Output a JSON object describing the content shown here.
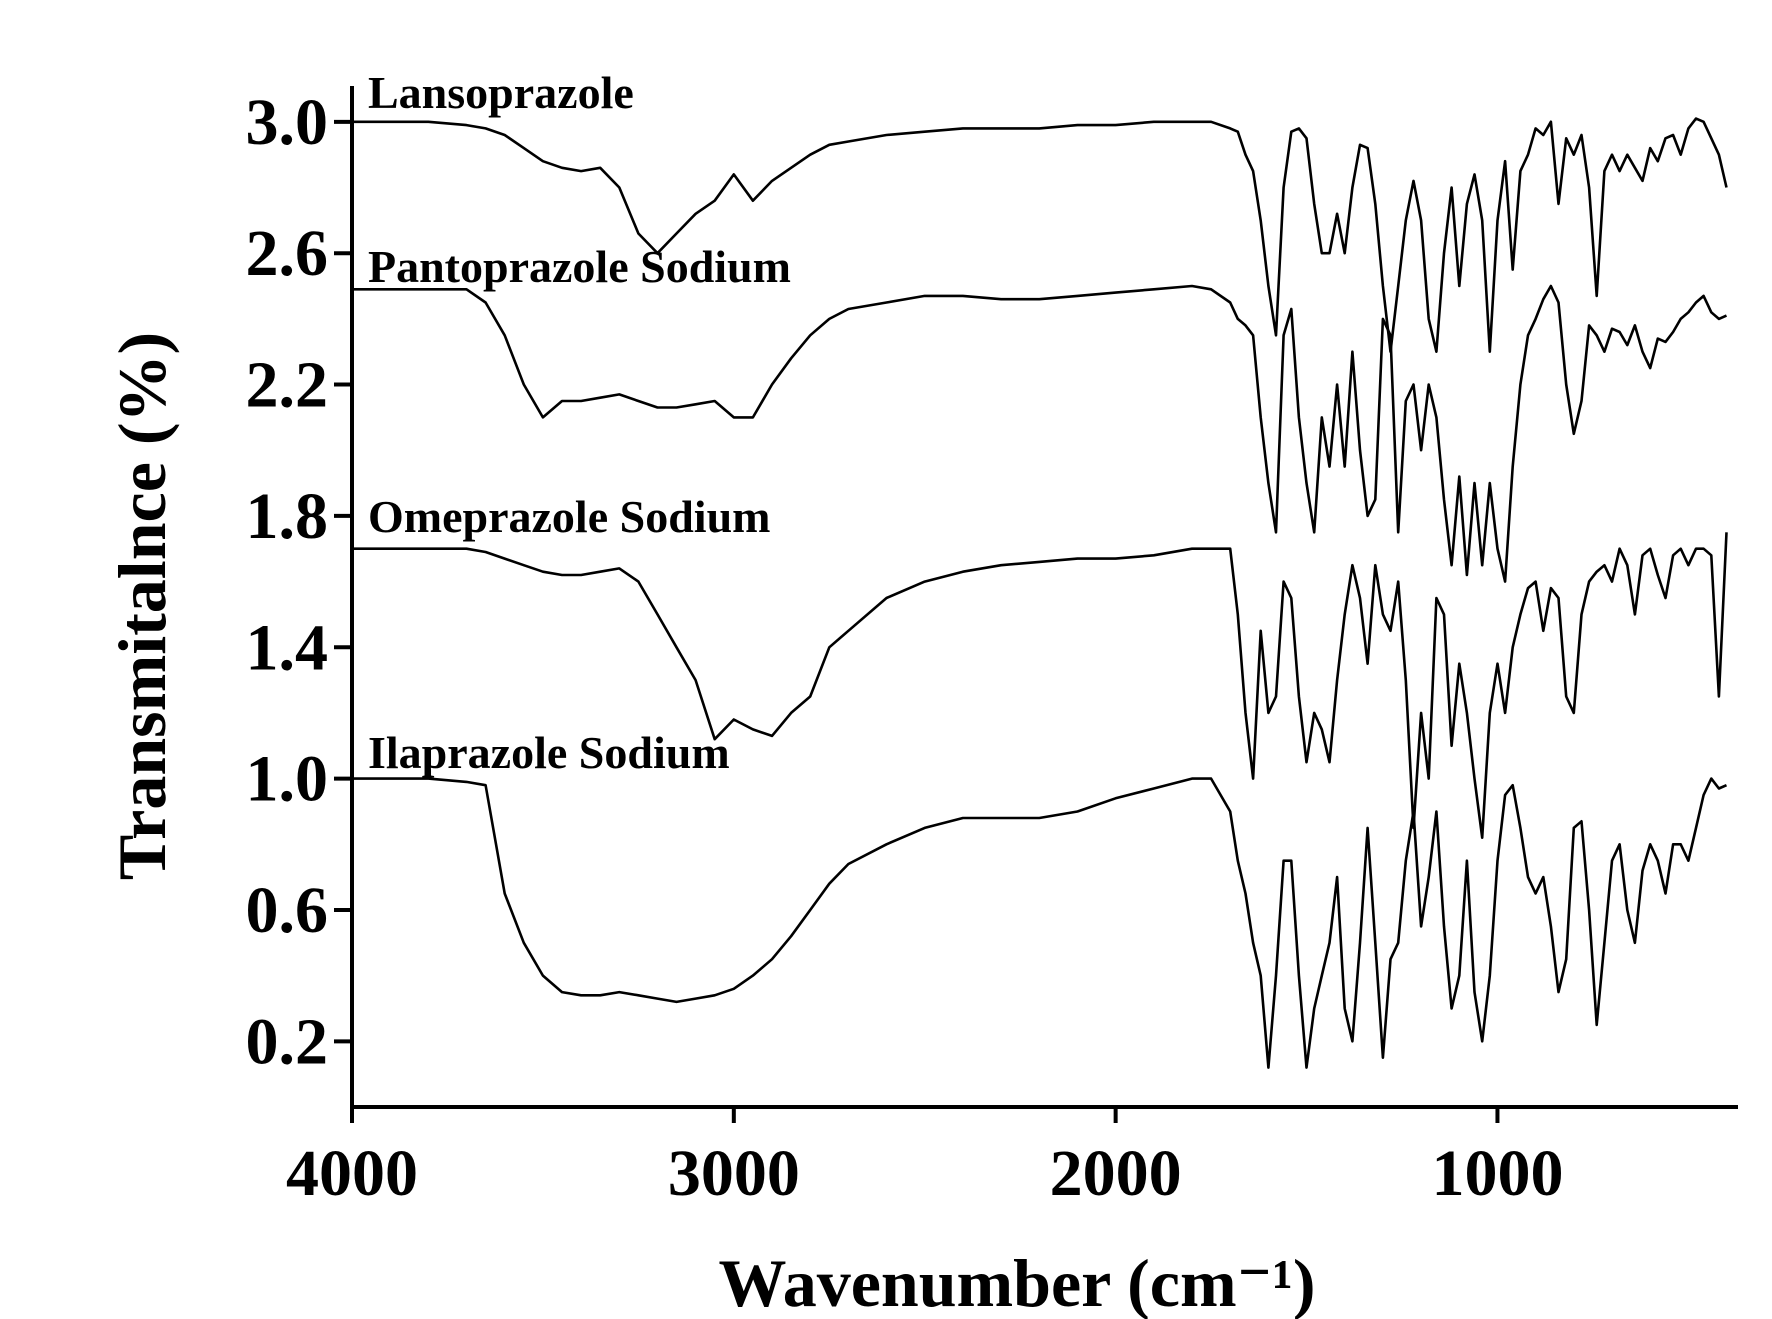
{
  "chart_data": {
    "type": "line",
    "xlabel": "Wavenumber (cm⁻¹)",
    "ylabel": "Transmitalnce (%)",
    "xlim": [
      4000,
      370
    ],
    "xticks": [
      4000,
      3000,
      2000,
      1000
    ],
    "ylim": [
      0,
      3.1
    ],
    "yticks": [
      0.2,
      0.6,
      {
        "value": 1.0,
        "label": "1.0"
      },
      1.4,
      1.8,
      2.2,
      2.6,
      {
        "value": 3.0,
        "label": "3.0"
      }
    ],
    "grid": false,
    "x": [
      4000,
      3900,
      3800,
      3700,
      3650,
      3600,
      3550,
      3500,
      3450,
      3400,
      3350,
      3300,
      3250,
      3200,
      3150,
      3100,
      3050,
      3000,
      2950,
      2900,
      2850,
      2800,
      2750,
      2700,
      2600,
      2500,
      2400,
      2300,
      2200,
      2100,
      2000,
      1900,
      1800,
      1750,
      1700,
      1680,
      1660,
      1640,
      1620,
      1600,
      1580,
      1560,
      1540,
      1520,
      1500,
      1480,
      1460,
      1440,
      1420,
      1400,
      1380,
      1360,
      1340,
      1320,
      1300,
      1280,
      1260,
      1240,
      1220,
      1200,
      1180,
      1160,
      1140,
      1120,
      1100,
      1080,
      1060,
      1040,
      1020,
      1000,
      980,
      960,
      940,
      920,
      900,
      880,
      860,
      840,
      820,
      800,
      780,
      760,
      740,
      720,
      700,
      680,
      660,
      640,
      620,
      600,
      580,
      560,
      540,
      520,
      500,
      480,
      460,
      440,
      420,
      400
    ],
    "series": [
      {
        "name": "Lansoprazole",
        "color": "#000000",
        "values": [
          3.0,
          3.0,
          3.0,
          2.99,
          2.98,
          2.96,
          2.92,
          2.88,
          2.86,
          2.85,
          2.86,
          2.8,
          2.66,
          2.6,
          2.66,
          2.72,
          2.76,
          2.84,
          2.76,
          2.82,
          2.86,
          2.9,
          2.93,
          2.94,
          2.96,
          2.97,
          2.98,
          2.98,
          2.98,
          2.99,
          2.99,
          3.0,
          3.0,
          3.0,
          2.98,
          2.97,
          2.9,
          2.85,
          2.7,
          2.5,
          2.35,
          2.8,
          2.97,
          2.98,
          2.95,
          2.75,
          2.6,
          2.6,
          2.72,
          2.6,
          2.8,
          2.93,
          2.92,
          2.75,
          2.5,
          2.3,
          2.5,
          2.7,
          2.82,
          2.7,
          2.4,
          2.3,
          2.6,
          2.8,
          2.5,
          2.75,
          2.84,
          2.7,
          2.3,
          2.7,
          2.88,
          2.55,
          2.85,
          2.9,
          2.98,
          2.96,
          3.0,
          2.75,
          2.95,
          2.9,
          2.96,
          2.8,
          2.47,
          2.85,
          2.9,
          2.85,
          2.9,
          2.86,
          2.82,
          2.92,
          2.88,
          2.95,
          2.96,
          2.9,
          2.98,
          3.01,
          3.0,
          2.95,
          2.9,
          2.8
        ]
      },
      {
        "name": "Pantoprazole Sodium",
        "color": "#000000",
        "values": [
          2.49,
          2.49,
          2.49,
          2.49,
          2.45,
          2.35,
          2.2,
          2.1,
          2.15,
          2.15,
          2.16,
          2.17,
          2.15,
          2.13,
          2.13,
          2.14,
          2.15,
          2.1,
          2.1,
          2.2,
          2.28,
          2.35,
          2.4,
          2.43,
          2.45,
          2.47,
          2.47,
          2.46,
          2.46,
          2.47,
          2.48,
          2.49,
          2.5,
          2.49,
          2.45,
          2.4,
          2.38,
          2.35,
          2.1,
          1.9,
          1.75,
          2.35,
          2.43,
          2.1,
          1.9,
          1.75,
          2.1,
          1.95,
          2.2,
          1.95,
          2.3,
          2.0,
          1.8,
          1.85,
          2.4,
          2.35,
          1.75,
          2.15,
          2.2,
          2.0,
          2.2,
          2.1,
          1.85,
          1.65,
          1.92,
          1.62,
          1.9,
          1.65,
          1.9,
          1.7,
          1.6,
          1.95,
          2.2,
          2.35,
          2.4,
          2.46,
          2.5,
          2.45,
          2.2,
          2.05,
          2.15,
          2.38,
          2.35,
          2.3,
          2.37,
          2.36,
          2.32,
          2.38,
          2.3,
          2.25,
          2.34,
          2.33,
          2.36,
          2.4,
          2.42,
          2.45,
          2.47,
          2.42,
          2.4,
          2.41
        ]
      },
      {
        "name": "Omeprazole Sodium",
        "color": "#000000",
        "values": [
          1.7,
          1.7,
          1.7,
          1.7,
          1.69,
          1.67,
          1.65,
          1.63,
          1.62,
          1.62,
          1.63,
          1.64,
          1.6,
          1.5,
          1.4,
          1.3,
          1.12,
          1.18,
          1.15,
          1.13,
          1.2,
          1.25,
          1.4,
          1.45,
          1.55,
          1.6,
          1.63,
          1.65,
          1.66,
          1.67,
          1.67,
          1.68,
          1.7,
          1.7,
          1.7,
          1.5,
          1.2,
          1.0,
          1.45,
          1.2,
          1.25,
          1.6,
          1.55,
          1.25,
          1.05,
          1.2,
          1.15,
          1.05,
          1.3,
          1.5,
          1.65,
          1.55,
          1.35,
          1.65,
          1.5,
          1.45,
          1.6,
          1.3,
          0.85,
          1.2,
          1.0,
          1.55,
          1.5,
          1.1,
          1.35,
          1.2,
          1.0,
          0.82,
          1.2,
          1.35,
          1.2,
          1.4,
          1.5,
          1.58,
          1.6,
          1.45,
          1.58,
          1.55,
          1.25,
          1.2,
          1.5,
          1.6,
          1.63,
          1.65,
          1.6,
          1.7,
          1.65,
          1.5,
          1.68,
          1.7,
          1.62,
          1.55,
          1.68,
          1.7,
          1.65,
          1.7,
          1.7,
          1.68,
          1.25,
          1.75
        ]
      },
      {
        "name": "Ilaprazole Sodium",
        "color": "#000000",
        "values": [
          1.0,
          1.0,
          1.0,
          0.99,
          0.98,
          0.65,
          0.5,
          0.4,
          0.35,
          0.34,
          0.34,
          0.35,
          0.34,
          0.33,
          0.32,
          0.33,
          0.34,
          0.36,
          0.4,
          0.45,
          0.52,
          0.6,
          0.68,
          0.74,
          0.8,
          0.85,
          0.88,
          0.88,
          0.88,
          0.9,
          0.94,
          0.97,
          1.0,
          1.0,
          0.9,
          0.75,
          0.65,
          0.5,
          0.4,
          0.12,
          0.4,
          0.75,
          0.75,
          0.4,
          0.12,
          0.3,
          0.4,
          0.5,
          0.7,
          0.3,
          0.2,
          0.5,
          0.85,
          0.5,
          0.15,
          0.45,
          0.5,
          0.75,
          0.9,
          0.55,
          0.7,
          0.9,
          0.55,
          0.3,
          0.4,
          0.75,
          0.35,
          0.2,
          0.4,
          0.75,
          0.95,
          0.98,
          0.85,
          0.7,
          0.65,
          0.7,
          0.55,
          0.35,
          0.45,
          0.85,
          0.87,
          0.6,
          0.25,
          0.5,
          0.75,
          0.8,
          0.6,
          0.5,
          0.72,
          0.8,
          0.75,
          0.65,
          0.8,
          0.8,
          0.75,
          0.85,
          0.95,
          1.0,
          0.97,
          0.98
        ]
      }
    ]
  }
}
